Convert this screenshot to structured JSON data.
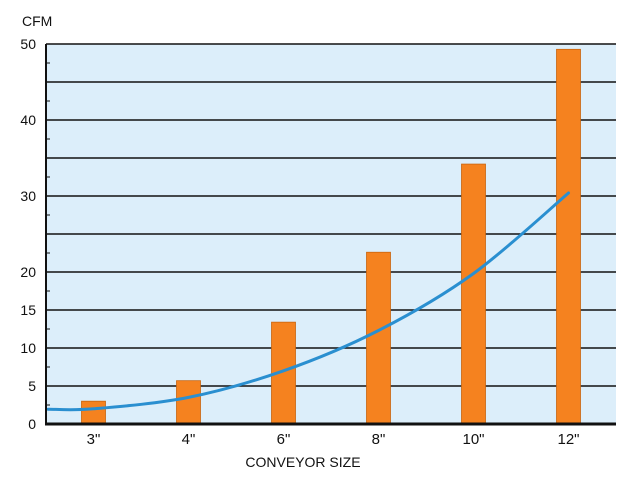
{
  "chart_data": {
    "type": "bar",
    "title": "",
    "ylabel": "CFM",
    "xlabel": "CONVEYOR SIZE",
    "categories": [
      "3\"",
      "4\"",
      "6\"",
      "8\"",
      "10\"",
      "12\""
    ],
    "values": [
      3,
      5.7,
      13.4,
      22.6,
      34.2,
      49.3
    ],
    "y_ticks": [
      {
        "label": "0",
        "value": 0
      },
      {
        "label": "5",
        "value": 5
      },
      {
        "label": "10",
        "value": 10
      },
      {
        "label": "15",
        "value": 15
      },
      {
        "label": "20",
        "value": 20
      },
      {
        "label": "30",
        "value": 30
      },
      {
        "label": "40",
        "value": 40
      },
      {
        "label": "50",
        "value": 50
      }
    ],
    "ylim": [
      0,
      50
    ],
    "grid": true,
    "trend_line": {
      "type": "curve",
      "x": [
        "3\"",
        "4\"",
        "6\"",
        "8\"",
        "10\"",
        "12\""
      ],
      "y": [
        2,
        3.5,
        7,
        12.3,
        19.8,
        30.4
      ]
    },
    "colors": {
      "bar": "#F5821F",
      "line": "#2A8FD0",
      "plot_bg": "#DCEEFA",
      "grid": "#111111"
    }
  }
}
